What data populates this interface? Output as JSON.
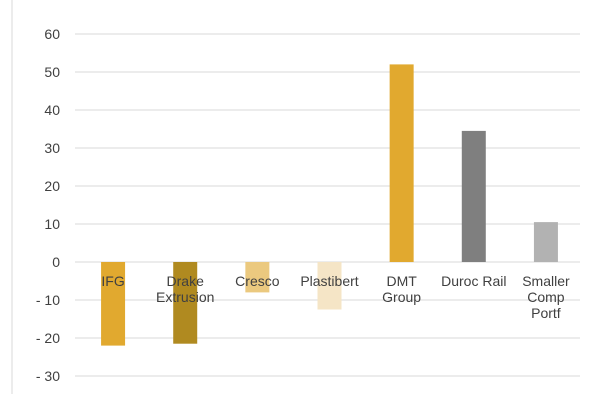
{
  "chart_data": {
    "type": "bar",
    "categories": [
      [
        "IFG"
      ],
      [
        "Drake",
        "Extrusion"
      ],
      [
        "Cresco"
      ],
      [
        "Plastibert"
      ],
      [
        "DMT",
        "Group"
      ],
      [
        "Duroc Rail"
      ],
      [
        "Smaller",
        "Comp",
        "Portf"
      ]
    ],
    "values": [
      -22,
      -21.5,
      -8,
      -12.5,
      52,
      34.5,
      10.5
    ],
    "colors": [
      "#e1a92f",
      "#b08a20",
      "#ebc97f",
      "#f5e5c6",
      "#e1a92f",
      "#7f7f7f",
      "#b2b2b2"
    ],
    "ylim": [
      -30,
      60
    ],
    "yticks": [
      "60",
      "50",
      "40",
      "30",
      "20",
      "10",
      "0",
      "- 10",
      "- 20",
      "- 30"
    ],
    "ytick_values": [
      60,
      50,
      40,
      30,
      20,
      10,
      0,
      -10,
      -20,
      -30
    ],
    "grid": true,
    "gridline_color": "#d9d9d9",
    "legend": "none"
  }
}
